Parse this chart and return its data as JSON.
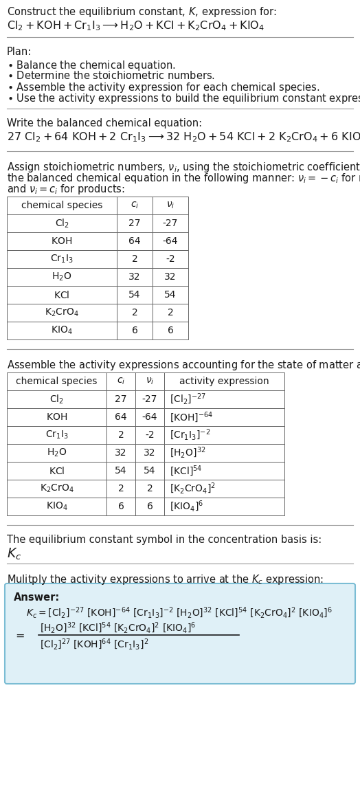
{
  "bg_color": "#ffffff",
  "text_color": "#1a1a1a",
  "table_border_color": "#666666",
  "answer_box_facecolor": "#dff0f7",
  "answer_box_edgecolor": "#7bbdd4",
  "font_size": 10.5,
  "small_font": 10,
  "line_color": "#999999",
  "table1_headers": [
    "chemical species",
    "c_i",
    "v_i"
  ],
  "table1_data": [
    [
      "Cl_2",
      "27",
      "-27"
    ],
    [
      "KOH",
      "64",
      "-64"
    ],
    [
      "Cr_1I_3",
      "2",
      "-2"
    ],
    [
      "H_2O",
      "32",
      "32"
    ],
    [
      "KCl",
      "54",
      "54"
    ],
    [
      "K_2CrO_4",
      "2",
      "2"
    ],
    [
      "KIO_4",
      "6",
      "6"
    ]
  ],
  "table2_data": [
    [
      "Cl_2",
      "27",
      "-27",
      "[Cl_2]^{-27}"
    ],
    [
      "KOH",
      "64",
      "-64",
      "[KOH]^{-64}"
    ],
    [
      "Cr_1I_3",
      "2",
      "-2",
      "[Cr_1I_3]^{-2}"
    ],
    [
      "H_2O",
      "32",
      "32",
      "[H_2O]^{32}"
    ],
    [
      "KCl",
      "54",
      "54",
      "[KCl]^{54}"
    ],
    [
      "K_2CrO_4",
      "2",
      "2",
      "[K_2CrO_4]^2"
    ],
    [
      "KIO_4",
      "6",
      "6",
      "[KIO_4]^6"
    ]
  ]
}
